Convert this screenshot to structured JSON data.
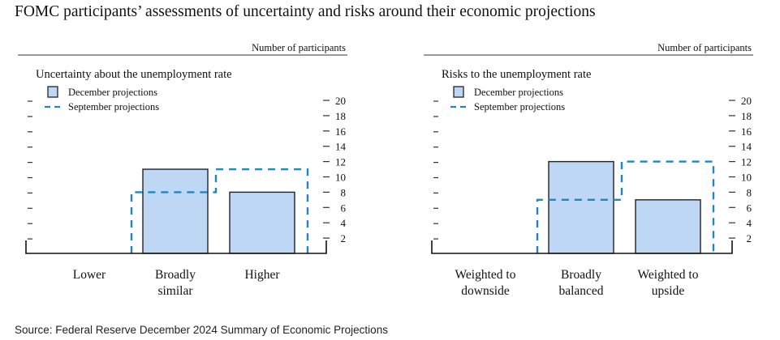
{
  "page": {
    "title": "FOMC participants’ assessments of uncertainty and risks around their economic projections",
    "source": "Source: Federal Reserve December 2024 Summary of Economic Projections"
  },
  "colors": {
    "december_fill": "#bdd7f5",
    "december_stroke": "#222222",
    "september_line": "#1f86c0",
    "text": "#111111"
  },
  "chart_data": [
    {
      "type": "bar",
      "title": "Uncertainty about the unemployment rate",
      "units_label": "Number of participants",
      "categories": [
        [
          "Lower"
        ],
        [
          "Broadly",
          "similar"
        ],
        [
          "Higher"
        ]
      ],
      "series": [
        {
          "name": "December projections",
          "style": "filled-bar",
          "values": [
            0,
            11,
            8
          ]
        },
        {
          "name": "September projections",
          "style": "dashed-outline",
          "values": [
            0,
            8,
            11
          ]
        }
      ],
      "ylim": [
        0,
        20
      ],
      "yticks": [
        "2",
        "4",
        "6",
        "8",
        "10",
        "12",
        "14",
        "16",
        "18",
        "20"
      ],
      "legend": "top-left",
      "grid": false
    },
    {
      "type": "bar",
      "title": "Risks to the unemployment rate",
      "units_label": "Number of participants",
      "categories": [
        [
          "Weighted to",
          "downside"
        ],
        [
          "Broadly",
          "balanced"
        ],
        [
          "Weighted to",
          "upside"
        ]
      ],
      "series": [
        {
          "name": "December projections",
          "style": "filled-bar",
          "values": [
            0,
            12,
            7
          ]
        },
        {
          "name": "September projections",
          "style": "dashed-outline",
          "values": [
            0,
            7,
            12
          ]
        }
      ],
      "ylim": [
        0,
        20
      ],
      "yticks": [
        "2",
        "4",
        "6",
        "8",
        "10",
        "12",
        "14",
        "16",
        "18",
        "20"
      ],
      "legend": "top-left",
      "grid": false
    }
  ]
}
